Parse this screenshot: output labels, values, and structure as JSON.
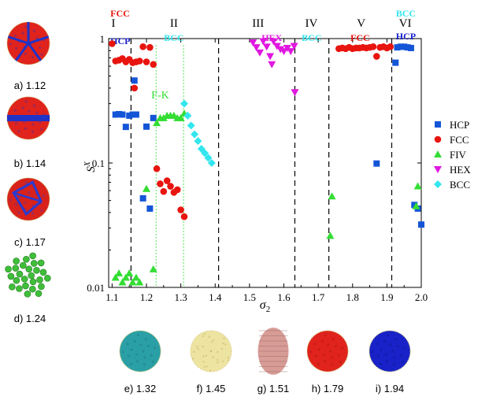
{
  "chart_data": {
    "type": "scatter",
    "xlabel": "σ",
    "xlabel_sub": "2",
    "ylabel": "S",
    "ylabel_sup": "X",
    "x_scale": "linear",
    "y_scale": "log",
    "xlim": [
      1.09,
      2.0
    ],
    "ylim": [
      0.01,
      1
    ],
    "x_ticks": [
      1.1,
      1.2,
      1.3,
      1.4,
      1.5,
      1.6,
      1.7,
      1.8,
      1.9,
      2.0
    ],
    "x_tick_labels": [
      "1.1",
      "1.2",
      "1.3",
      "1.4",
      "1.5",
      "1.6",
      "1.7",
      "1.8",
      "1.9",
      "2.0"
    ],
    "y_ticks": [
      0.01,
      0.1,
      1
    ],
    "y_tick_labels": [
      "0.01",
      "0.1",
      "1"
    ],
    "grid": false,
    "legend_position": "right",
    "boundaries_dashed": [
      1.155,
      1.41,
      1.632,
      1.731,
      1.914
    ],
    "boundaries_dotted": [
      1.228,
      1.308
    ],
    "regions": [
      {
        "roman": "I",
        "x": 1.098,
        "labels": [
          {
            "text": "FCC",
            "color": "#e8140f"
          },
          {
            "text": "HCP",
            "color": "#1a22cc"
          }
        ]
      },
      {
        "roman": "II",
        "x": 1.28,
        "labels": [
          {
            "text": "BCC",
            "color": "#33e6ee"
          }
        ]
      },
      {
        "roman": "III",
        "x": 1.525,
        "labels": [
          {
            "text": "HEX",
            "color": "#e018e0"
          }
        ]
      },
      {
        "roman": "IV",
        "x": 1.68,
        "labels": [
          {
            "text": "BCC",
            "color": "#33e6ee"
          }
        ]
      },
      {
        "roman": "V",
        "x": 1.825,
        "labels": [
          {
            "text": "FCC",
            "color": "#e8140f"
          }
        ]
      },
      {
        "roman": "VI",
        "x": 1.935,
        "labels": [
          {
            "text": "BCC",
            "color": "#33e6ee"
          },
          {
            "text": "HCP",
            "color": "#1a22cc"
          }
        ]
      }
    ],
    "annotations": [
      {
        "text": "F-K",
        "x": 1.24,
        "y": 0.33,
        "color": "#33dd33"
      }
    ],
    "series": [
      {
        "name": "HCP",
        "marker": "square",
        "color": "#1455d8",
        "points": [
          [
            1.11,
            0.245
          ],
          [
            1.12,
            0.247
          ],
          [
            1.13,
            0.245
          ],
          [
            1.14,
            0.195
          ],
          [
            1.15,
            0.24
          ],
          [
            1.16,
            0.245
          ],
          [
            1.165,
            0.46
          ],
          [
            1.17,
            0.245
          ],
          [
            1.19,
            0.052
          ],
          [
            1.2,
            0.196
          ],
          [
            1.21,
            0.043
          ],
          [
            1.22,
            0.23
          ],
          [
            1.87,
            0.099
          ],
          [
            1.925,
            0.64
          ],
          [
            1.93,
            0.85
          ],
          [
            1.94,
            0.86
          ],
          [
            1.95,
            0.86
          ],
          [
            1.96,
            0.85
          ],
          [
            1.97,
            0.84
          ],
          [
            1.98,
            0.046
          ],
          [
            1.99,
            0.043
          ],
          [
            2.0,
            0.032
          ]
        ]
      },
      {
        "name": "FCC",
        "marker": "circle",
        "color": "#e8140f",
        "points": [
          [
            1.1,
            0.91
          ],
          [
            1.11,
            0.66
          ],
          [
            1.12,
            0.67
          ],
          [
            1.13,
            0.69
          ],
          [
            1.14,
            0.65
          ],
          [
            1.15,
            0.68
          ],
          [
            1.16,
            0.64
          ],
          [
            1.165,
            0.4
          ],
          [
            1.17,
            0.65
          ],
          [
            1.18,
            0.66
          ],
          [
            1.19,
            0.86
          ],
          [
            1.2,
            0.65
          ],
          [
            1.21,
            0.85
          ],
          [
            1.22,
            0.62
          ],
          [
            1.23,
            0.09
          ],
          [
            1.24,
            0.068
          ],
          [
            1.25,
            0.059
          ],
          [
            1.26,
            0.072
          ],
          [
            1.27,
            0.065
          ],
          [
            1.28,
            0.058
          ],
          [
            1.29,
            0.061
          ],
          [
            1.3,
            0.042
          ],
          [
            1.31,
            0.037
          ],
          [
            1.76,
            0.83
          ],
          [
            1.77,
            0.84
          ],
          [
            1.78,
            0.83
          ],
          [
            1.79,
            0.85
          ],
          [
            1.8,
            0.83
          ],
          [
            1.81,
            0.84
          ],
          [
            1.82,
            0.84
          ],
          [
            1.83,
            0.85
          ],
          [
            1.84,
            0.84
          ],
          [
            1.85,
            0.85
          ],
          [
            1.86,
            0.86
          ],
          [
            1.87,
            0.72
          ],
          [
            1.88,
            0.85
          ],
          [
            1.89,
            0.86
          ],
          [
            1.9,
            0.84
          ],
          [
            1.91,
            0.86
          ]
        ]
      },
      {
        "name": "FIV",
        "marker": "triangle-up",
        "color": "#33dd33",
        "points": [
          [
            1.11,
            0.012
          ],
          [
            1.12,
            0.013
          ],
          [
            1.13,
            0.011
          ],
          [
            1.14,
            0.012
          ],
          [
            1.15,
            0.013
          ],
          [
            1.16,
            0.011
          ],
          [
            1.17,
            0.012
          ],
          [
            1.18,
            0.011
          ],
          [
            1.2,
            0.062
          ],
          [
            1.22,
            0.014
          ],
          [
            1.23,
            0.21
          ],
          [
            1.24,
            0.23
          ],
          [
            1.25,
            0.23
          ],
          [
            1.26,
            0.24
          ],
          [
            1.27,
            0.24
          ],
          [
            1.28,
            0.24
          ],
          [
            1.29,
            0.23
          ],
          [
            1.3,
            0.23
          ],
          [
            1.31,
            0.25
          ],
          [
            1.735,
            0.026
          ],
          [
            1.74,
            0.054
          ],
          [
            1.985,
            0.045
          ],
          [
            1.99,
            0.065
          ]
        ]
      },
      {
        "name": "HEX",
        "marker": "triangle-down",
        "color": "#e018e0",
        "points": [
          [
            1.51,
            0.93
          ],
          [
            1.52,
            0.85
          ],
          [
            1.53,
            0.77
          ],
          [
            1.54,
            0.95
          ],
          [
            1.55,
            0.86
          ],
          [
            1.56,
            0.72
          ],
          [
            1.565,
            0.62
          ],
          [
            1.57,
            0.95
          ],
          [
            1.58,
            0.87
          ],
          [
            1.59,
            0.82
          ],
          [
            1.6,
            0.79
          ],
          [
            1.61,
            0.84
          ],
          [
            1.62,
            0.79
          ],
          [
            1.63,
            0.87
          ],
          [
            1.632,
            0.37
          ]
        ]
      },
      {
        "name": "BCC",
        "marker": "diamond",
        "color": "#33e6ee",
        "points": [
          [
            1.31,
            0.3
          ],
          [
            1.32,
            0.24
          ],
          [
            1.33,
            0.2
          ],
          [
            1.34,
            0.17
          ],
          [
            1.35,
            0.15
          ],
          [
            1.36,
            0.13
          ],
          [
            1.37,
            0.12
          ],
          [
            1.38,
            0.11
          ],
          [
            1.39,
            0.1
          ]
        ]
      }
    ]
  },
  "thumbnails_left": [
    {
      "label": "a) 1.12",
      "style": "fcc-hcp",
      "fill": "#e0231c",
      "accent": "#2033c8"
    },
    {
      "label": "b) 1.14",
      "style": "band",
      "fill": "#e0231c",
      "accent": "#2033c8"
    },
    {
      "label": "c) 1.17",
      "style": "facets",
      "fill": "#d8221b",
      "accent": "#2a3ad0"
    },
    {
      "label": "d) 1.24",
      "style": "fiv",
      "fill": "#3fbe3a",
      "accent": "#1f7a1c"
    }
  ],
  "thumbnails_bottom": [
    {
      "label": "e) 1.32",
      "style": "bcc",
      "fill": "#2aa0a6",
      "accent": "#1b6e70"
    },
    {
      "label": "f) 1.45",
      "style": "liquid",
      "fill": "#eee4a2",
      "accent": "#c9b96a"
    },
    {
      "label": "g) 1.51",
      "style": "hex",
      "fill": "#d79c96",
      "accent": "#9a6a66"
    },
    {
      "label": "h) 1.79",
      "style": "fcc",
      "fill": "#e0231c",
      "accent": "#a01410"
    },
    {
      "label": "i) 1.94",
      "style": "hcp",
      "fill": "#1822c8",
      "accent": "#0c1280"
    }
  ]
}
